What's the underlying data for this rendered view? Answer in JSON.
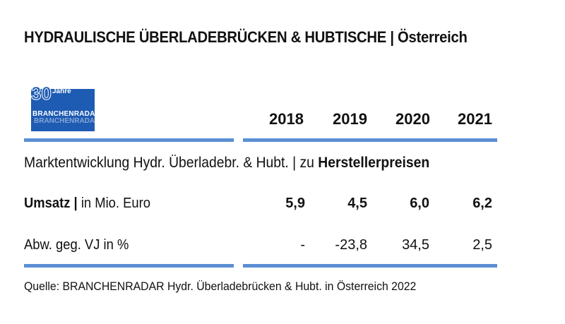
{
  "title": "HYDRAULISCHE ÜBERLADEBRÜCKEN & HUBTISCHE | Österreich",
  "logo": {
    "number": "30",
    "jahre": "Jahre",
    "brand": "BRANCHENRADAR",
    "brand_ghost": "BRANCHENRADAR"
  },
  "years": [
    "2018",
    "2019",
    "2020",
    "2021"
  ],
  "subhead": {
    "prefix": "Marktentwicklung Hydr. Überladebr. & Hubt. | zu ",
    "emphasis": "Herstellerpreisen"
  },
  "rows": {
    "umsatz": {
      "label_bold": "Umsatz |",
      "label_rest": " in Mio. Euro",
      "values": [
        "5,9",
        "4,5",
        "6,0",
        "6,2"
      ]
    },
    "abw": {
      "label": "Abw. geg. VJ in %",
      "values": [
        "-",
        "-23,8",
        "34,5",
        "2,5"
      ]
    }
  },
  "source": "Quelle: BRANCHENRADAR Hydr. Überladebrücken & Hubt. in Österreich 2022",
  "colors": {
    "accent": "#5b8fd3",
    "logo_blue": "#1e5bb3"
  }
}
